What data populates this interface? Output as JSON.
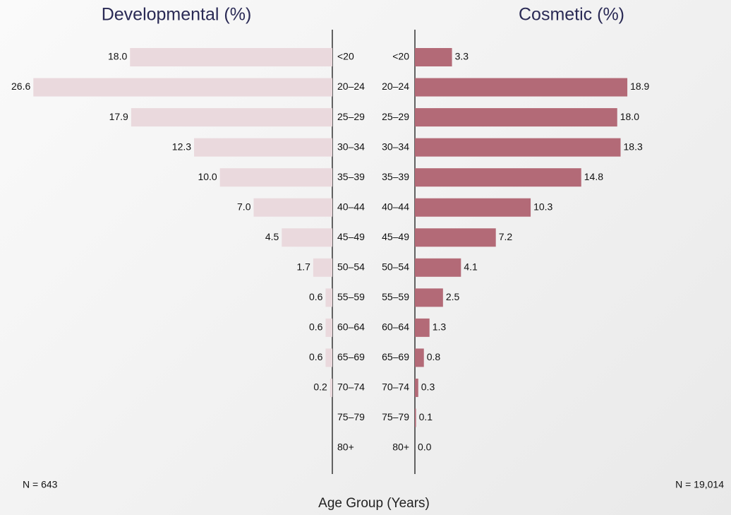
{
  "chart_data": {
    "type": "butterfly",
    "x_label": "Age Group (Years)",
    "categories": [
      "<20",
      "20–24",
      "25–29",
      "30–34",
      "35–39",
      "40–44",
      "45–49",
      "50–54",
      "55–59",
      "60–64",
      "65–69",
      "70–74",
      "75–79",
      "80+"
    ],
    "series": [
      {
        "name": "Developmental (%)",
        "color": "#ead9dd",
        "side": "left",
        "sample_label": "N = 643",
        "values": [
          18.0,
          26.6,
          17.9,
          12.3,
          10.0,
          7.0,
          4.5,
          1.7,
          0.6,
          0.6,
          0.6,
          0.2,
          null,
          null
        ],
        "value_labels": [
          "18.0",
          "26.6",
          "17.9",
          "12.3",
          "10.0",
          "7.0",
          "4.5",
          "1.7",
          "0.6",
          "0.6",
          "0.6",
          "0.2",
          null,
          null
        ]
      },
      {
        "name": "Cosmetic (%)",
        "color": "#b36a77",
        "side": "right",
        "sample_label": "N = 19,014",
        "values": [
          3.3,
          18.9,
          18.0,
          18.3,
          14.8,
          10.3,
          7.2,
          4.1,
          2.5,
          1.3,
          0.8,
          0.3,
          0.1,
          0.0
        ],
        "value_labels": [
          "3.3",
          "18.9",
          "18.0",
          "18.3",
          "14.8",
          "10.3",
          "7.2",
          "4.1",
          "2.5",
          "1.3",
          "0.8",
          "0.3",
          "0.1",
          "0.0"
        ]
      }
    ]
  }
}
